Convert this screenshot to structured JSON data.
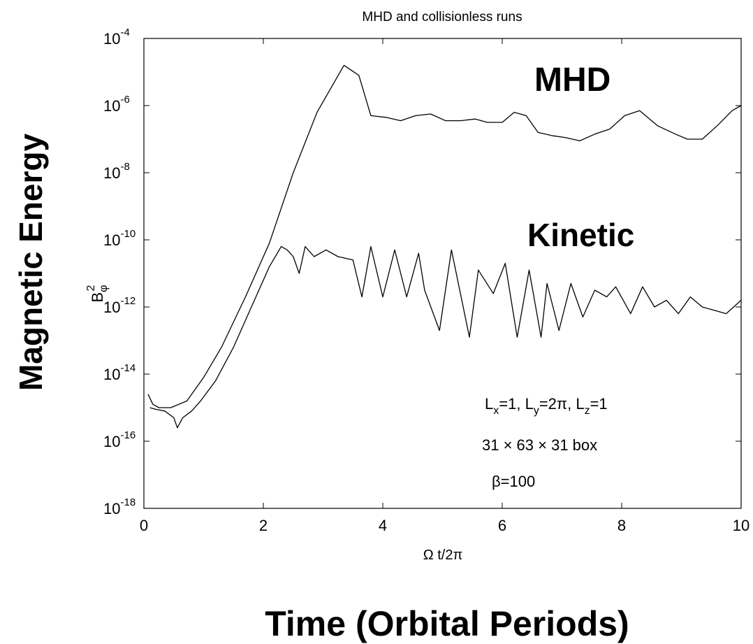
{
  "chart_data": {
    "type": "line",
    "title": "MHD and collisionless runs",
    "xlabel": "Ω t/2π",
    "ylabel_base": "B",
    "ylabel_sup": "2",
    "ylabel_sub": "φ",
    "xlim": [
      0,
      10
    ],
    "ylim_exp": [
      -18,
      -4
    ],
    "yscale": "log",
    "grid": false,
    "x_ticks": [
      "0",
      "2",
      "4",
      "6",
      "8",
      "10"
    ],
    "y_tick_exponents": [
      "-18",
      "-16",
      "-14",
      "-12",
      "-10",
      "-8",
      "-6",
      "-4"
    ],
    "y_tick_base": "10",
    "series": [
      {
        "name": "MHD",
        "x": [
          0.07,
          0.15,
          0.25,
          0.45,
          0.72,
          1.0,
          1.3,
          1.7,
          2.1,
          2.5,
          2.9,
          3.35,
          3.6,
          3.8,
          4.05,
          4.3,
          4.55,
          4.8,
          5.05,
          5.3,
          5.55,
          5.75,
          6.0,
          6.2,
          6.4,
          6.6,
          6.85,
          7.05,
          7.3,
          7.55,
          7.8,
          8.05,
          8.3,
          8.6,
          8.9,
          9.1,
          9.35,
          9.6,
          9.85,
          10.0
        ],
        "log10_y": [
          -14.6,
          -14.9,
          -15.0,
          -15.0,
          -14.8,
          -14.1,
          -13.2,
          -11.7,
          -10.1,
          -8.0,
          -6.2,
          -4.8,
          -5.1,
          -6.3,
          -6.35,
          -6.45,
          -6.3,
          -6.25,
          -6.45,
          -6.45,
          -6.4,
          -6.5,
          -6.5,
          -6.2,
          -6.3,
          -6.8,
          -6.9,
          -6.95,
          -7.05,
          -6.85,
          -6.7,
          -6.3,
          -6.15,
          -6.6,
          -6.85,
          -7.0,
          -7.0,
          -6.6,
          -6.15,
          -6.0
        ]
      },
      {
        "name": "Kinetic",
        "x": [
          0.1,
          0.2,
          0.35,
          0.5,
          0.56,
          0.65,
          0.8,
          0.95,
          1.2,
          1.5,
          1.8,
          2.1,
          2.3,
          2.4,
          2.5,
          2.6,
          2.7,
          2.85,
          3.05,
          3.25,
          3.5,
          3.65,
          3.8,
          4.0,
          4.2,
          4.4,
          4.6,
          4.7,
          4.95,
          5.15,
          5.45,
          5.6,
          5.85,
          6.05,
          6.25,
          6.45,
          6.65,
          6.75,
          6.95,
          7.15,
          7.35,
          7.55,
          7.75,
          7.9,
          8.15,
          8.35,
          8.55,
          8.75,
          8.95,
          9.15,
          9.35,
          9.55,
          9.75,
          10.0
        ],
        "log10_y": [
          -15.0,
          -15.05,
          -15.1,
          -15.3,
          -15.6,
          -15.3,
          -15.1,
          -14.8,
          -14.2,
          -13.2,
          -12.0,
          -10.8,
          -10.2,
          -10.3,
          -10.5,
          -11.0,
          -10.2,
          -10.5,
          -10.3,
          -10.5,
          -10.6,
          -11.7,
          -10.2,
          -11.7,
          -10.3,
          -11.7,
          -10.4,
          -11.5,
          -12.7,
          -10.3,
          -12.9,
          -10.9,
          -11.6,
          -10.7,
          -12.9,
          -10.9,
          -12.9,
          -11.3,
          -12.7,
          -11.3,
          -12.3,
          -11.5,
          -11.7,
          -11.4,
          -12.2,
          -11.4,
          -12.0,
          -11.8,
          -12.2,
          -11.7,
          -12.0,
          -12.1,
          -12.2,
          -11.8
        ]
      }
    ],
    "series_labels": [
      "MHD",
      "Kinetic"
    ],
    "annotations": {
      "dims_L": "L",
      "dims_x": "x",
      "dims_eq1": "=1, ",
      "dims_y": "y",
      "dims_eq2": "=2π, ",
      "dims_z": "z",
      "dims_eq3": "=1",
      "box": "31 × 63 × 31 box",
      "beta": "β=100"
    },
    "outer_ylabel": "Magnetic Energy",
    "outer_xlabel": "Time (Orbital Periods)"
  },
  "colors": {
    "line": "#000000",
    "axes": "#000000",
    "background": "#ffffff"
  }
}
